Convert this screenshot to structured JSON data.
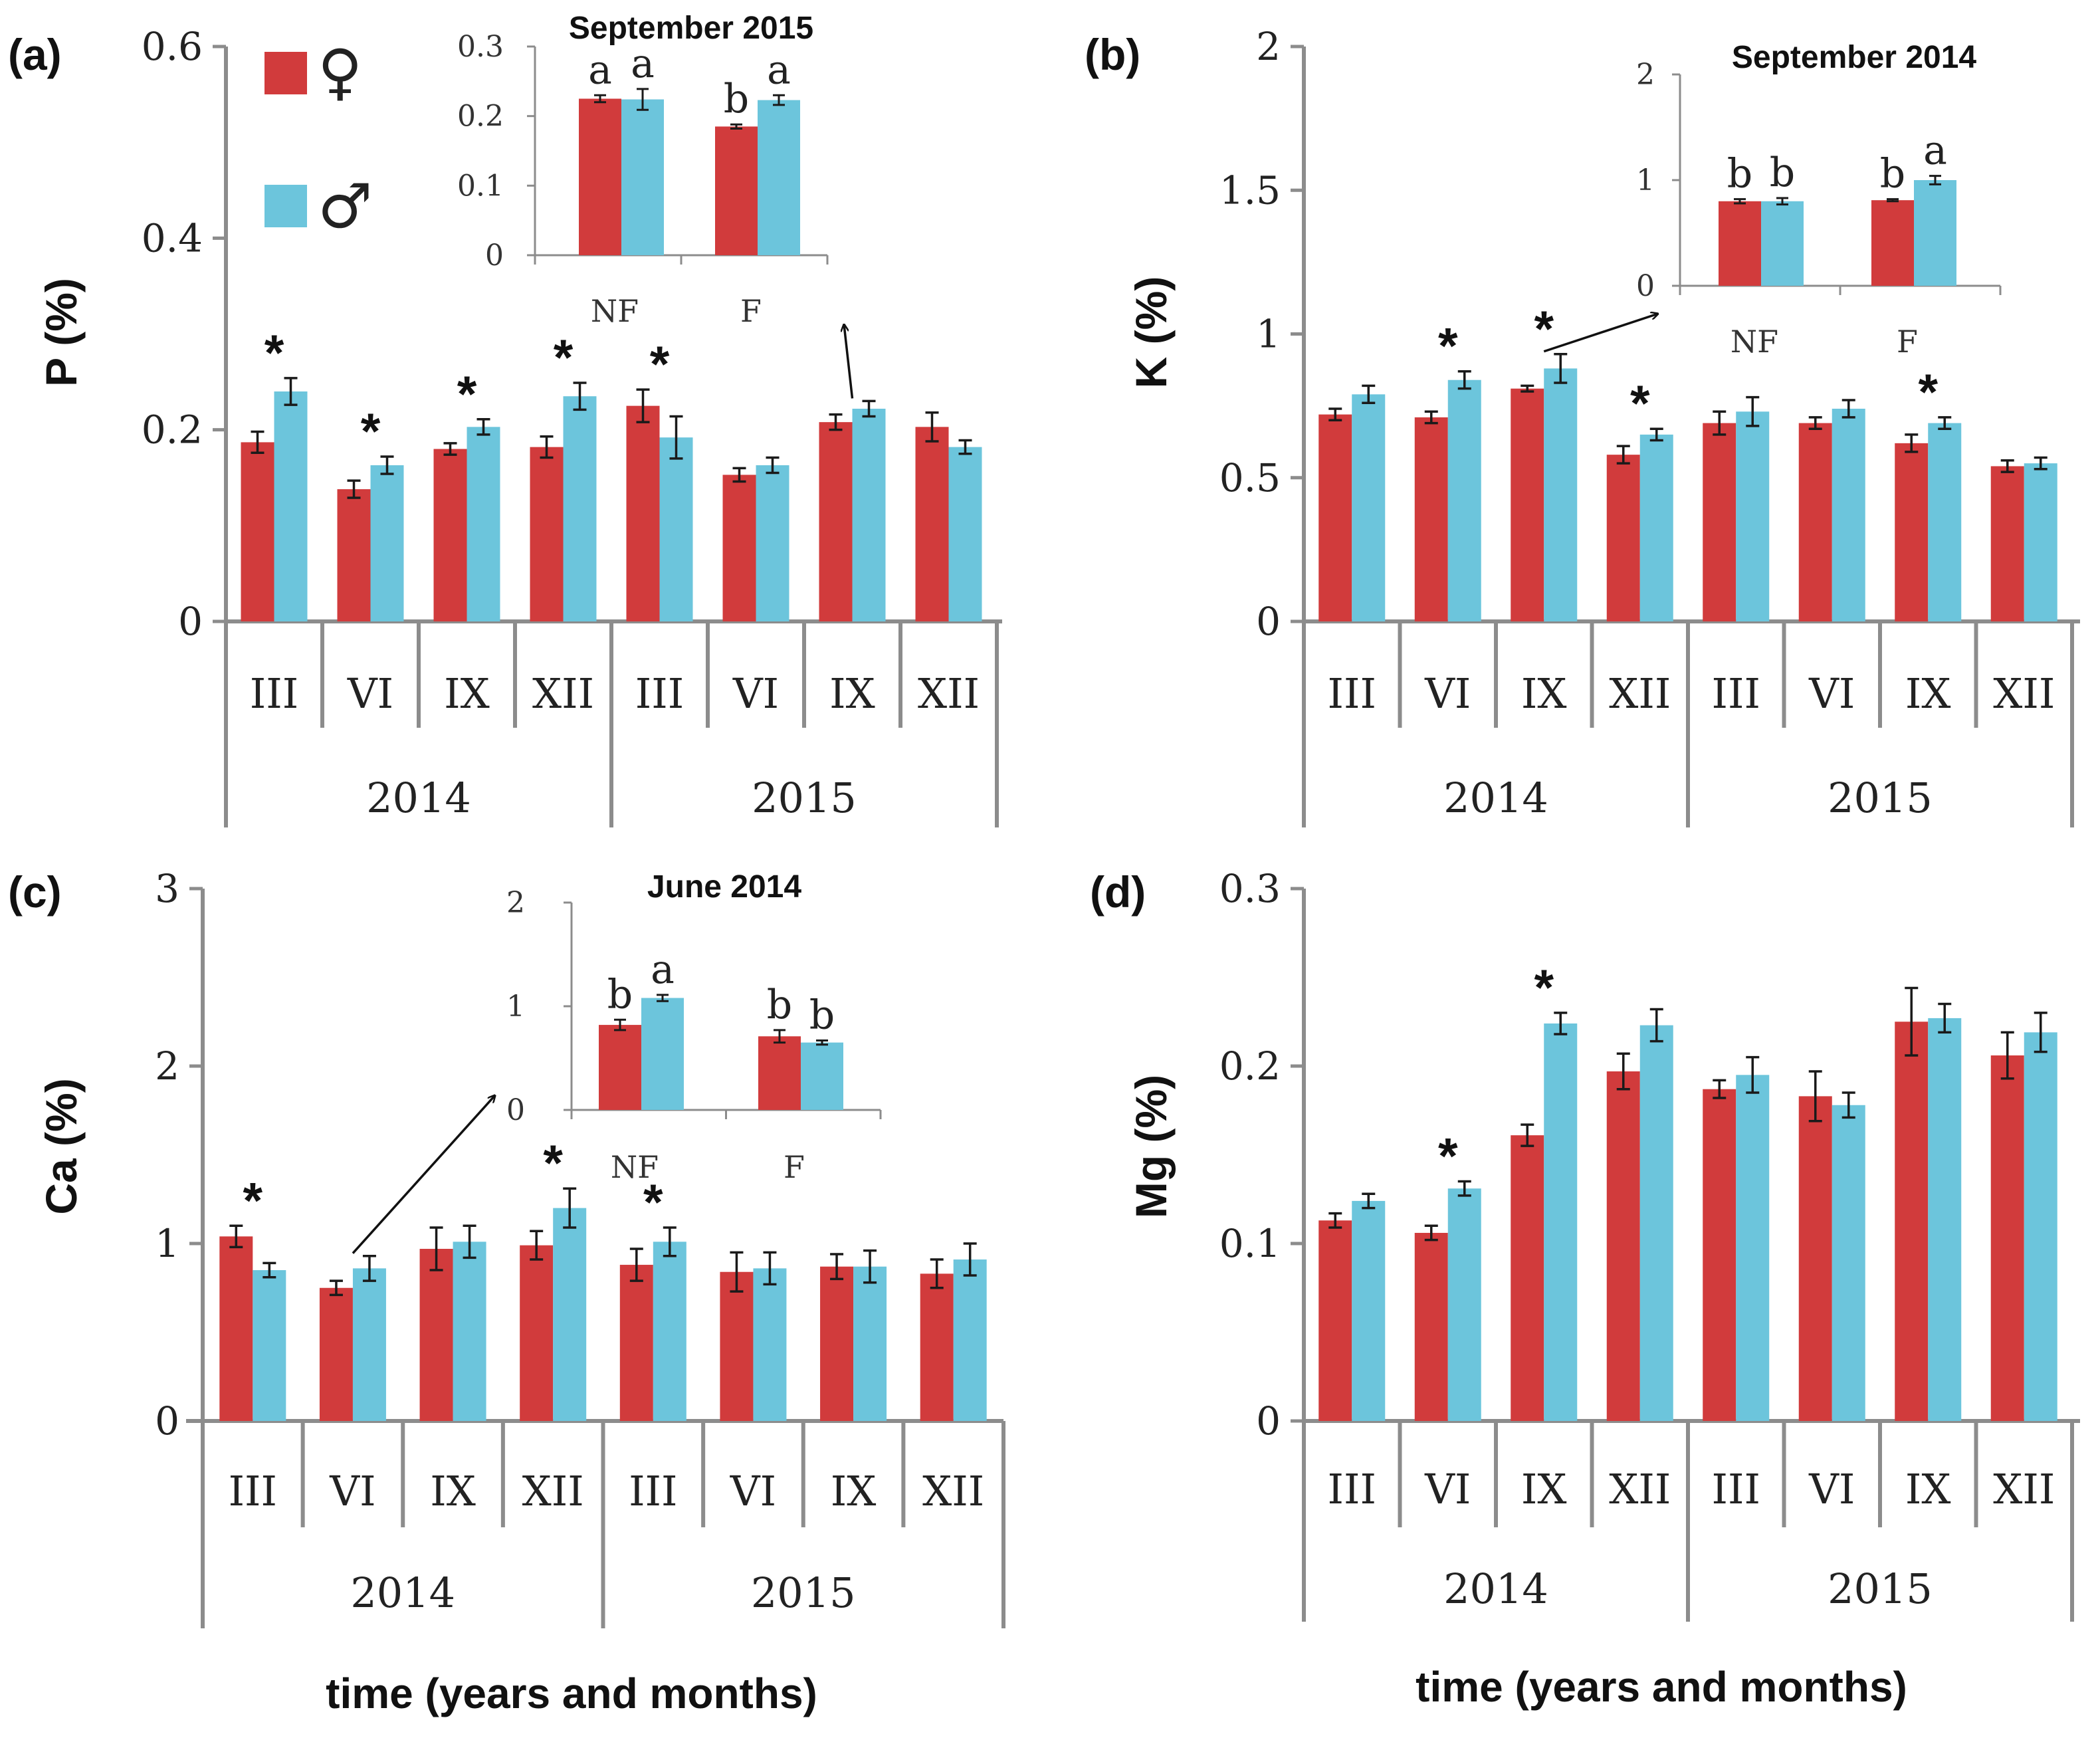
{
  "colors": {
    "female": "#D13B3C",
    "male": "#6CC5DC",
    "axis": "#8c8c8c",
    "error": "#1a1a1a"
  },
  "legend": {
    "female_symbol": "♀",
    "male_symbol": "♂"
  },
  "xaxis": {
    "months": [
      "III",
      "VI",
      "IX",
      "XII",
      "III",
      "VI",
      "IX",
      "XII"
    ],
    "years": [
      "2014",
      "2015"
    ],
    "title": "time (years and months)"
  },
  "chart_data": [
    {
      "id": "a",
      "panel_label": "(a)",
      "type": "bar",
      "ylabel": "P (%)",
      "ylim": [
        0,
        0.6
      ],
      "yticks": [
        "0",
        "0.2",
        "0.4",
        "0.6"
      ],
      "categories": [
        "III 2014",
        "VI 2014",
        "IX 2014",
        "XII 2014",
        "III 2015",
        "VI 2015",
        "IX 2015",
        "XII 2015"
      ],
      "series": [
        {
          "name": "female",
          "values": [
            0.187,
            0.138,
            0.18,
            0.182,
            0.225,
            0.153,
            0.208,
            0.203
          ],
          "errors": [
            0.011,
            0.009,
            0.006,
            0.011,
            0.017,
            0.007,
            0.008,
            0.015
          ]
        },
        {
          "name": "male",
          "values": [
            0.24,
            0.163,
            0.203,
            0.235,
            0.192,
            0.163,
            0.222,
            0.182
          ],
          "errors": [
            0.014,
            0.009,
            0.008,
            0.014,
            0.022,
            0.008,
            0.008,
            0.007
          ]
        }
      ],
      "significance": [
        "*",
        "*",
        "*",
        "*",
        "*",
        "",
        "",
        ""
      ],
      "inset": {
        "title": "September 2015",
        "ylim": [
          0,
          0.3
        ],
        "yticks": [
          "0",
          "0.1",
          "0.2",
          "0.3"
        ],
        "categories": [
          "NF",
          "F"
        ],
        "series": [
          {
            "name": "female",
            "values": [
              0.225,
              0.185
            ],
            "errors": [
              0.005,
              0.003
            ]
          },
          {
            "name": "male",
            "values": [
              0.224,
              0.223
            ],
            "errors": [
              0.015,
              0.007
            ]
          }
        ],
        "letters": [
          [
            "a",
            "a"
          ],
          [
            "b",
            "a"
          ]
        ],
        "arrow_from_category": "IX 2015"
      }
    },
    {
      "id": "b",
      "panel_label": "(b)",
      "type": "bar",
      "ylabel": "K (%)",
      "ylim": [
        0,
        2
      ],
      "yticks": [
        "0",
        "0.5",
        "1",
        "1.5",
        "2"
      ],
      "categories": [
        "III 2014",
        "VI 2014",
        "IX 2014",
        "XII 2014",
        "III 2015",
        "VI 2015",
        "IX 2015",
        "XII 2015"
      ],
      "series": [
        {
          "name": "female",
          "values": [
            0.72,
            0.71,
            0.81,
            0.58,
            0.69,
            0.69,
            0.62,
            0.54
          ],
          "errors": [
            0.02,
            0.02,
            0.01,
            0.03,
            0.04,
            0.02,
            0.03,
            0.02
          ]
        },
        {
          "name": "male",
          "values": [
            0.79,
            0.84,
            0.88,
            0.65,
            0.73,
            0.74,
            0.69,
            0.55
          ],
          "errors": [
            0.03,
            0.03,
            0.05,
            0.02,
            0.05,
            0.03,
            0.02,
            0.02
          ]
        }
      ],
      "significance": [
        "",
        "*",
        "*",
        "*",
        "",
        "",
        "*",
        ""
      ],
      "inset": {
        "title": "September 2014",
        "ylim": [
          0,
          2
        ],
        "yticks": [
          "0",
          "1",
          "2"
        ],
        "categories": [
          "NF",
          "F"
        ],
        "series": [
          {
            "name": "female",
            "values": [
              0.8,
              0.81
            ],
            "errors": [
              0.02,
              0.01
            ]
          },
          {
            "name": "male",
            "values": [
              0.8,
              1.0
            ],
            "errors": [
              0.03,
              0.04
            ]
          }
        ],
        "letters": [
          [
            "b",
            "b"
          ],
          [
            "b",
            "a"
          ]
        ],
        "arrow_from_category": "IX 2014"
      }
    },
    {
      "id": "c",
      "panel_label": "(c)",
      "type": "bar",
      "ylabel": "Ca (%)",
      "ylim": [
        0,
        3
      ],
      "yticks": [
        "0",
        "1",
        "2",
        "3"
      ],
      "categories": [
        "III 2014",
        "VI 2014",
        "IX 2014",
        "XII 2014",
        "III 2015",
        "VI 2015",
        "IX 2015",
        "XII 2015"
      ],
      "series": [
        {
          "name": "female",
          "values": [
            1.04,
            0.75,
            0.97,
            0.99,
            0.88,
            0.84,
            0.87,
            0.83
          ],
          "errors": [
            0.06,
            0.04,
            0.12,
            0.08,
            0.09,
            0.11,
            0.07,
            0.08
          ]
        },
        {
          "name": "male",
          "values": [
            0.85,
            0.86,
            1.01,
            1.2,
            1.01,
            0.86,
            0.87,
            0.91
          ],
          "errors": [
            0.04,
            0.07,
            0.09,
            0.11,
            0.08,
            0.09,
            0.09,
            0.09
          ]
        }
      ],
      "significance": [
        "*",
        "",
        "",
        "*",
        "*",
        "",
        "",
        ""
      ],
      "inset": {
        "title": "June 2014",
        "ylim": [
          0,
          2
        ],
        "yticks": [
          "0",
          "1",
          "2"
        ],
        "categories": [
          "NF",
          "F"
        ],
        "series": [
          {
            "name": "female",
            "values": [
              0.82,
              0.71
            ],
            "errors": [
              0.05,
              0.06
            ]
          },
          {
            "name": "male",
            "values": [
              1.08,
              0.65
            ],
            "errors": [
              0.03,
              0.02
            ]
          }
        ],
        "letters": [
          [
            "b",
            "a"
          ],
          [
            "b",
            "b"
          ]
        ],
        "arrow_from_category": "VI 2014"
      }
    },
    {
      "id": "d",
      "panel_label": "(d)",
      "type": "bar",
      "ylabel": "Mg (%)",
      "ylim": [
        0,
        0.3
      ],
      "yticks": [
        "0",
        "0.1",
        "0.2",
        "0.3"
      ],
      "categories": [
        "III 2014",
        "VI 2014",
        "IX 2014",
        "XII 2014",
        "III 2015",
        "VI 2015",
        "IX 2015",
        "XII 2015"
      ],
      "series": [
        {
          "name": "female",
          "values": [
            0.113,
            0.106,
            0.161,
            0.197,
            0.187,
            0.183,
            0.225,
            0.206
          ],
          "errors": [
            0.004,
            0.004,
            0.006,
            0.01,
            0.005,
            0.014,
            0.019,
            0.013
          ]
        },
        {
          "name": "male",
          "values": [
            0.124,
            0.131,
            0.224,
            0.223,
            0.195,
            0.178,
            0.227,
            0.219
          ],
          "errors": [
            0.004,
            0.004,
            0.006,
            0.009,
            0.01,
            0.007,
            0.008,
            0.011
          ]
        }
      ],
      "significance": [
        "",
        "*",
        "*",
        "",
        "",
        "",
        "",
        ""
      ],
      "inset": null
    }
  ]
}
